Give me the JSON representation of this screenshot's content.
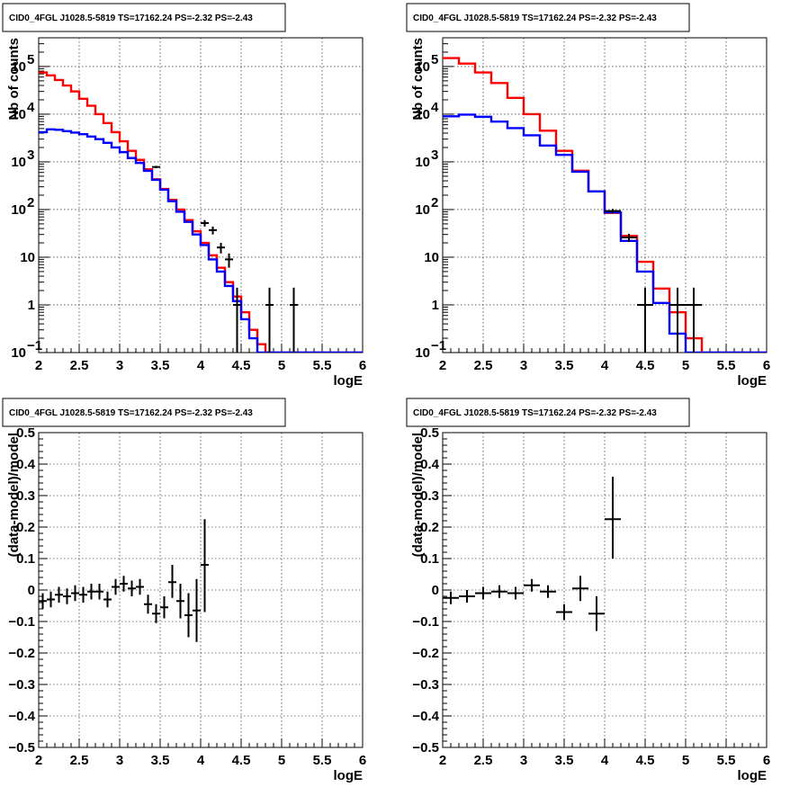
{
  "chart_data": [
    {
      "type": "line",
      "title": "CID0_4FGL J1028.5-5819 TS=17162.24 PS=-2.32 PS=-2.43",
      "xlabel": "logE",
      "ylabel": "Nb of counts",
      "log_y": true,
      "xlim": [
        2,
        6
      ],
      "ylim": [
        0.1,
        400000
      ],
      "grid": true,
      "x_ticks": [
        "2",
        "2.5",
        "3",
        "3.5",
        "4",
        "4.5",
        "5",
        "5.5",
        "6"
      ],
      "y_ticks": [
        {
          "value": 0.1,
          "label": "10",
          "exp": "−1"
        },
        {
          "value": 1,
          "label": "1",
          "exp": ""
        },
        {
          "value": 10,
          "label": "10",
          "exp": ""
        },
        {
          "value": 100,
          "label": "10",
          "exp": "2"
        },
        {
          "value": 1000,
          "label": "10",
          "exp": "3"
        },
        {
          "value": 10000,
          "label": "10",
          "exp": "4"
        },
        {
          "value": 100000,
          "label": "10",
          "exp": "5"
        }
      ],
      "bin_edges": [
        2.0,
        2.1,
        2.2,
        2.3,
        2.4,
        2.5,
        2.6,
        2.7,
        2.8,
        2.9,
        3.0,
        3.1,
        3.2,
        3.3,
        3.4,
        3.5,
        3.6,
        3.7,
        3.8,
        3.9,
        4.0,
        4.1,
        4.2,
        4.3,
        4.4,
        4.5,
        4.6,
        4.7,
        4.8,
        4.9,
        5.0,
        5.1,
        5.2,
        5.3,
        5.4,
        5.5,
        5.6,
        5.7,
        5.8,
        5.9,
        6.0
      ],
      "series": [
        {
          "color": "#ff0000",
          "style": "step",
          "values": [
            75000,
            65000,
            52000,
            40000,
            30000,
            21000,
            15000,
            10000,
            6500,
            4200,
            2700,
            1700,
            1100,
            700,
            430,
            270,
            160,
            100,
            60,
            35,
            20,
            11,
            6,
            3,
            1.5,
            0.7,
            0.3,
            0.15,
            0.1,
            0.1,
            0.1,
            0.1,
            0.1,
            0.1,
            0.1,
            0.1,
            0.1,
            0.1,
            0.1,
            0.1
          ]
        },
        {
          "color": "#0000ff",
          "style": "step",
          "values": [
            4200,
            4800,
            4700,
            4400,
            4100,
            3800,
            3400,
            3000,
            2500,
            2000,
            1600,
            1200,
            950,
            650,
            420,
            260,
            150,
            90,
            55,
            30,
            18,
            9,
            5,
            2.5,
            1.2,
            0.5,
            0.2,
            0.1,
            0.1,
            0.1,
            0.1,
            0.1,
            0.1,
            0.1,
            0.1,
            0.1,
            0.1,
            0.1,
            0.1,
            0.1
          ]
        },
        {
          "color": "#000000",
          "style": "errorbar",
          "points": [
            {
              "x": 3.45,
              "y": 780,
              "xerr": 0.05,
              "ylo": 735,
              "yhi": 825
            },
            {
              "x": 4.05,
              "y": 52,
              "xerr": 0.05,
              "ylo": 44,
              "yhi": 60
            },
            {
              "x": 4.15,
              "y": 37,
              "xerr": 0.05,
              "ylo": 30,
              "yhi": 44
            },
            {
              "x": 4.25,
              "y": 16,
              "xerr": 0.05,
              "ylo": 12,
              "yhi": 20
            },
            {
              "x": 4.35,
              "y": 9,
              "xerr": 0.05,
              "ylo": 6,
              "yhi": 12
            },
            {
              "x": 4.45,
              "y": 1,
              "xerr": 0.05,
              "ylo": 0.1,
              "yhi": 2.3
            },
            {
              "x": 4.85,
              "y": 1,
              "xerr": 0.05,
              "ylo": 0.1,
              "yhi": 2.3
            },
            {
              "x": 5.15,
              "y": 1,
              "xerr": 0.05,
              "ylo": 0.1,
              "yhi": 2.3
            }
          ]
        }
      ]
    },
    {
      "type": "line",
      "title": "CID0_4FGL J1028.5-5819 TS=17162.24 PS=-2.32 PS=-2.43",
      "xlabel": "logE",
      "ylabel": "Nb of counts",
      "log_y": true,
      "xlim": [
        2,
        6
      ],
      "ylim": [
        0.1,
        400000
      ],
      "grid": true,
      "x_ticks": [
        "2",
        "2.5",
        "3",
        "3.5",
        "4",
        "4.5",
        "5",
        "5.5",
        "6"
      ],
      "y_ticks": [
        {
          "value": 0.1,
          "label": "10",
          "exp": "−1"
        },
        {
          "value": 1,
          "label": "1",
          "exp": ""
        },
        {
          "value": 10,
          "label": "10",
          "exp": ""
        },
        {
          "value": 100,
          "label": "10",
          "exp": "2"
        },
        {
          "value": 1000,
          "label": "10",
          "exp": "3"
        },
        {
          "value": 10000,
          "label": "10",
          "exp": "4"
        },
        {
          "value": 100000,
          "label": "10",
          "exp": "5"
        }
      ],
      "bin_edges": [
        2.0,
        2.2,
        2.4,
        2.6,
        2.8,
        3.0,
        3.2,
        3.4,
        3.6,
        3.8,
        4.0,
        4.2,
        4.4,
        4.6,
        4.8,
        5.0,
        5.2,
        5.4,
        5.6,
        5.8,
        6.0
      ],
      "series": [
        {
          "color": "#ff0000",
          "style": "step",
          "values": [
            150000,
            115000,
            75000,
            45000,
            22000,
            10000,
            4500,
            1700,
            650,
            240,
            85,
            28,
            8,
            2.2,
            0.7,
            0.2,
            0.1,
            0.1,
            0.1,
            0.1
          ]
        },
        {
          "color": "#0000ff",
          "style": "step",
          "values": [
            9000,
            9800,
            8800,
            7000,
            5100,
            3600,
            2200,
            1400,
            620,
            240,
            87,
            22,
            5,
            1.1,
            0.25,
            0.1,
            0.1,
            0.1,
            0.1,
            0.1
          ]
        },
        {
          "color": "#000000",
          "style": "errorbar",
          "points": [
            {
              "x": 4.1,
              "y": 93,
              "xerr": 0.1,
              "ylo": 83,
              "yhi": 103
            },
            {
              "x": 4.3,
              "y": 26,
              "xerr": 0.1,
              "ylo": 21,
              "yhi": 31
            },
            {
              "x": 4.5,
              "y": 1,
              "xerr": 0.1,
              "ylo": 0.1,
              "yhi": 2.3
            },
            {
              "x": 4.9,
              "y": 1,
              "xerr": 0.1,
              "ylo": 0.1,
              "yhi": 2.3
            },
            {
              "x": 5.1,
              "y": 1,
              "xerr": 0.1,
              "ylo": 0.1,
              "yhi": 2.3
            }
          ]
        }
      ]
    },
    {
      "type": "scatter",
      "title": "CID0_4FGL J1028.5-5819 TS=17162.24 PS=-2.32 PS=-2.43",
      "xlabel": "logE",
      "ylabel": "(data-model)/model",
      "log_y": false,
      "xlim": [
        2,
        6
      ],
      "ylim": [
        -0.5,
        0.5
      ],
      "grid": true,
      "x_ticks": [
        "2",
        "2.5",
        "3",
        "3.5",
        "4",
        "4.5",
        "5",
        "5.5",
        "6"
      ],
      "y_ticks": [
        {
          "value": -0.5,
          "label": "−0.5"
        },
        {
          "value": -0.4,
          "label": "−0.4"
        },
        {
          "value": -0.3,
          "label": "−0.3"
        },
        {
          "value": -0.2,
          "label": "−0.2"
        },
        {
          "value": -0.1,
          "label": "−0.1"
        },
        {
          "value": 0,
          "label": "0"
        },
        {
          "value": 0.1,
          "label": "0.1"
        },
        {
          "value": 0.2,
          "label": "0.2"
        },
        {
          "value": 0.3,
          "label": "0.3"
        },
        {
          "value": 0.4,
          "label": "0.4"
        },
        {
          "value": 0.5,
          "label": "0.5"
        }
      ],
      "series": [
        {
          "color": "#000000",
          "style": "errorbar",
          "points": [
            {
              "x": 2.05,
              "y": -0.035,
              "xerr": 0.05,
              "ylo": -0.06,
              "yhi": -0.01
            },
            {
              "x": 2.15,
              "y": -0.03,
              "xerr": 0.05,
              "ylo": -0.055,
              "yhi": -0.005
            },
            {
              "x": 2.25,
              "y": -0.015,
              "xerr": 0.05,
              "ylo": -0.04,
              "yhi": 0.01
            },
            {
              "x": 2.35,
              "y": -0.02,
              "xerr": 0.05,
              "ylo": -0.045,
              "yhi": 0.005
            },
            {
              "x": 2.45,
              "y": -0.01,
              "xerr": 0.05,
              "ylo": -0.035,
              "yhi": 0.015
            },
            {
              "x": 2.55,
              "y": -0.015,
              "xerr": 0.05,
              "ylo": -0.04,
              "yhi": 0.01
            },
            {
              "x": 2.65,
              "y": -0.005,
              "xerr": 0.05,
              "ylo": -0.03,
              "yhi": 0.02
            },
            {
              "x": 2.75,
              "y": -0.005,
              "xerr": 0.05,
              "ylo": -0.03,
              "yhi": 0.02
            },
            {
              "x": 2.85,
              "y": -0.03,
              "xerr": 0.05,
              "ylo": -0.055,
              "yhi": -0.005
            },
            {
              "x": 2.95,
              "y": 0.01,
              "xerr": 0.05,
              "ylo": -0.015,
              "yhi": 0.035
            },
            {
              "x": 3.05,
              "y": 0.02,
              "xerr": 0.05,
              "ylo": -0.005,
              "yhi": 0.045
            },
            {
              "x": 3.15,
              "y": 0.005,
              "xerr": 0.05,
              "ylo": -0.02,
              "yhi": 0.03
            },
            {
              "x": 3.25,
              "y": 0.01,
              "xerr": 0.05,
              "ylo": -0.015,
              "yhi": 0.035
            },
            {
              "x": 3.35,
              "y": -0.045,
              "xerr": 0.05,
              "ylo": -0.075,
              "yhi": -0.015
            },
            {
              "x": 3.45,
              "y": -0.075,
              "xerr": 0.05,
              "ylo": -0.105,
              "yhi": -0.045
            },
            {
              "x": 3.55,
              "y": -0.055,
              "xerr": 0.05,
              "ylo": -0.09,
              "yhi": -0.02
            },
            {
              "x": 3.65,
              "y": 0.025,
              "xerr": 0.05,
              "ylo": -0.025,
              "yhi": 0.08
            },
            {
              "x": 3.75,
              "y": -0.035,
              "xerr": 0.05,
              "ylo": -0.09,
              "yhi": 0.02
            },
            {
              "x": 3.85,
              "y": -0.08,
              "xerr": 0.05,
              "ylo": -0.15,
              "yhi": -0.01
            },
            {
              "x": 3.95,
              "y": -0.065,
              "xerr": 0.05,
              "ylo": -0.165,
              "yhi": 0.035
            },
            {
              "x": 4.05,
              "y": 0.08,
              "xerr": 0.05,
              "ylo": -0.07,
              "yhi": 0.225
            }
          ]
        }
      ]
    },
    {
      "type": "scatter",
      "title": "CID0_4FGL J1028.5-5819 TS=17162.24 PS=-2.32 PS=-2.43",
      "xlabel": "logE",
      "ylabel": "(data-model)/model",
      "log_y": false,
      "xlim": [
        2,
        6
      ],
      "ylim": [
        -0.5,
        0.5
      ],
      "grid": true,
      "x_ticks": [
        "2",
        "2.5",
        "3",
        "3.5",
        "4",
        "4.5",
        "5",
        "5.5",
        "6"
      ],
      "y_ticks": [
        {
          "value": -0.5,
          "label": "−0.5"
        },
        {
          "value": -0.4,
          "label": "−0.4"
        },
        {
          "value": -0.3,
          "label": "−0.3"
        },
        {
          "value": -0.2,
          "label": "−0.2"
        },
        {
          "value": -0.1,
          "label": "−0.1"
        },
        {
          "value": 0,
          "label": "0"
        },
        {
          "value": 0.1,
          "label": "0.1"
        },
        {
          "value": 0.2,
          "label": "0.2"
        },
        {
          "value": 0.3,
          "label": "0.3"
        },
        {
          "value": 0.4,
          "label": "0.4"
        },
        {
          "value": 0.5,
          "label": "0.5"
        }
      ],
      "series": [
        {
          "color": "#000000",
          "style": "errorbar",
          "points": [
            {
              "x": 2.1,
              "y": -0.025,
              "xerr": 0.1,
              "ylo": -0.045,
              "yhi": -0.005
            },
            {
              "x": 2.3,
              "y": -0.02,
              "xerr": 0.1,
              "ylo": -0.04,
              "yhi": 0.0
            },
            {
              "x": 2.5,
              "y": -0.01,
              "xerr": 0.1,
              "ylo": -0.03,
              "yhi": 0.01
            },
            {
              "x": 2.7,
              "y": -0.005,
              "xerr": 0.1,
              "ylo": -0.025,
              "yhi": 0.015
            },
            {
              "x": 2.9,
              "y": -0.01,
              "xerr": 0.1,
              "ylo": -0.03,
              "yhi": 0.01
            },
            {
              "x": 3.1,
              "y": 0.015,
              "xerr": 0.1,
              "ylo": -0.005,
              "yhi": 0.035
            },
            {
              "x": 3.3,
              "y": -0.005,
              "xerr": 0.1,
              "ylo": -0.025,
              "yhi": 0.015
            },
            {
              "x": 3.5,
              "y": -0.07,
              "xerr": 0.1,
              "ylo": -0.095,
              "yhi": -0.045
            },
            {
              "x": 3.7,
              "y": 0.005,
              "xerr": 0.1,
              "ylo": -0.035,
              "yhi": 0.045
            },
            {
              "x": 3.9,
              "y": -0.075,
              "xerr": 0.1,
              "ylo": -0.13,
              "yhi": -0.02
            },
            {
              "x": 4.1,
              "y": 0.225,
              "xerr": 0.1,
              "ylo": 0.1,
              "yhi": 0.36
            }
          ]
        }
      ]
    }
  ]
}
